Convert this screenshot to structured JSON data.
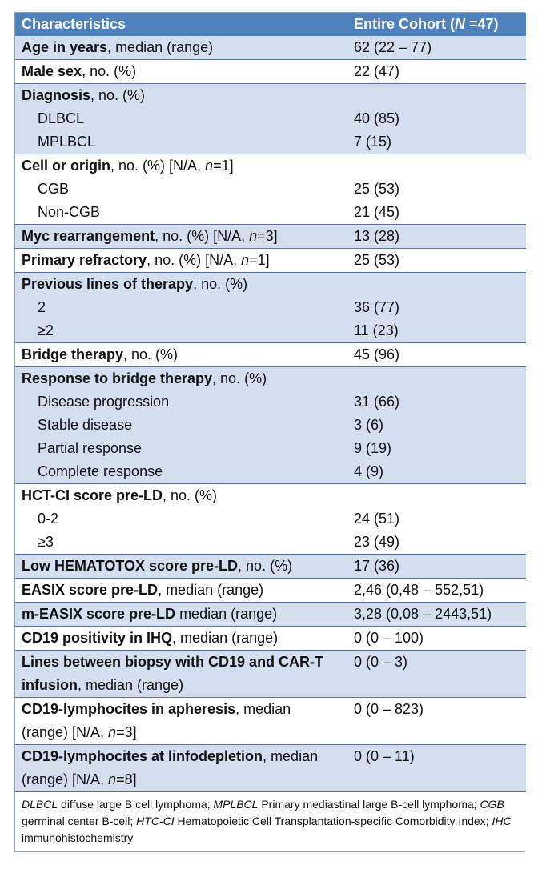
{
  "header": {
    "col1": "Characteristics",
    "col2_prefix": "Entire Cohort (",
    "col2_n": "N",
    "col2_suffix": " =47)"
  },
  "rows": {
    "age": {
      "label": "Age in years",
      "rest": ", median (range)",
      "value": "62 (22 – 77)"
    },
    "male": {
      "label": "Male sex",
      "rest": ", no. (%)",
      "value": "22 (47)"
    },
    "diagnosis": {
      "label": "Diagnosis",
      "rest": ", no. (%)",
      "items": [
        {
          "name": "DLBCL",
          "value": "40 (85)"
        },
        {
          "name": "MPLBCL",
          "value": "7 (15)"
        }
      ]
    },
    "cell": {
      "label": "Cell or origin",
      "rest": ", no. (%) [N/A, ",
      "n": "n",
      "rest2": "=1]",
      "items": [
        {
          "name": "CGB",
          "value": "25 (53)"
        },
        {
          "name": "Non-CGB",
          "value": "21 (45)"
        }
      ]
    },
    "myc": {
      "label": "Myc rearrangement",
      "rest": ", no. (%) [N/A, ",
      "n": "n",
      "rest2": "=3]",
      "value": "13 (28)"
    },
    "refractory": {
      "label": "Primary refractory",
      "rest": ", no. (%) [N/A, ",
      "n": "n",
      "rest2": "=1]",
      "value": "25 (53)"
    },
    "lines": {
      "label": "Previous lines of therapy",
      "rest": ", no. (%)",
      "items": [
        {
          "name": "2",
          "value": "36 (77)"
        },
        {
          "name": "≥2",
          "value": "11 (23)"
        }
      ]
    },
    "bridge": {
      "label": "Bridge therapy",
      "rest": ", no. (%)",
      "value": "45 (96)"
    },
    "response": {
      "label": "Response to bridge therapy",
      "rest": ", no. (%)",
      "items": [
        {
          "name": "Disease progression",
          "value": "31 (66)"
        },
        {
          "name": "Stable disease",
          "value": "3 (6)"
        },
        {
          "name": "Partial response",
          "value": "9 (19)"
        },
        {
          "name": "Complete response",
          "value": "4 (9)"
        }
      ]
    },
    "hctci": {
      "label": "HCT-CI score pre-LD",
      "rest": ", no. (%)",
      "items": [
        {
          "name": "0-2",
          "value": "24 (51)"
        },
        {
          "name": "≥3",
          "value": "23 (49)"
        }
      ]
    },
    "hematotox": {
      "label": "Low HEMATOTOX score pre-LD",
      "rest": ", no. (%)",
      "value": "17 (36)"
    },
    "easix": {
      "label": "EASIX score pre-LD",
      "rest": ", median (range)",
      "value": "2,46 (0,48 – 552,51)"
    },
    "measix": {
      "label": "m-EASIX score pre-LD",
      "rest": " median (range)",
      "value": "3,28 (0,08 – 2443,51)"
    },
    "cd19ihq": {
      "label": "CD19 positivity in IHQ",
      "rest": ", median (range)",
      "value": "0 (0 – 100)"
    },
    "linesbiopsy": {
      "label": "Lines between biopsy with CD19 and CAR-T infusion",
      "rest": ", median (range)",
      "value": "0 (0 – 3)"
    },
    "apheresis": {
      "label": "CD19-lymphocites in apheresis",
      "rest": ", median (range) [N/A, ",
      "n": "n",
      "rest2": "=3]",
      "value": "0 (0 – 823)"
    },
    "linfo": {
      "label": "CD19-lymphocites at linfodepletion",
      "rest": ", median (range) [N/A, ",
      "n": "n",
      "rest2": "=8]",
      "value": "0 (0 – 11)"
    }
  },
  "footnote": {
    "a1": "DLBCL",
    "d1": " diffuse large B cell lymphoma;  ",
    "a2": "MPLBCL",
    "d2": " Primary mediastinal large B-cell lymphoma;  ",
    "a3": "CGB",
    "d3": "  germinal center B-cell; ",
    "a4": "HTC-CI",
    "d4": "  Hematopoietic Cell Transplantation-specific Comorbidity Index; ",
    "a5": "IHC",
    "d5": " immunohistochemistry"
  }
}
